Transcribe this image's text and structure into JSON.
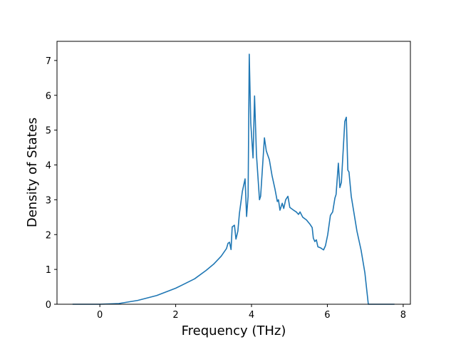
{
  "chart_data": {
    "type": "line",
    "xlabel": "Frequency (THz)",
    "ylabel": "Density of States",
    "x": [
      -0.72,
      0,
      0.5,
      1,
      1.5,
      2,
      2.5,
      2.8,
      3.0,
      3.2,
      3.34,
      3.38,
      3.42,
      3.46,
      3.49,
      3.55,
      3.59,
      3.64,
      3.68,
      3.76,
      3.83,
      3.87,
      3.91,
      3.94,
      3.98,
      4.04,
      4.08,
      4.13,
      4.21,
      4.24,
      4.34,
      4.39,
      4.47,
      4.54,
      4.62,
      4.68,
      4.71,
      4.75,
      4.81,
      4.85,
      4.9,
      4.96,
      5.01,
      5.11,
      5.18,
      5.24,
      5.28,
      5.35,
      5.45,
      5.54,
      5.6,
      5.63,
      5.67,
      5.71,
      5.75,
      5.82,
      5.9,
      5.95,
      6.01,
      6.08,
      6.14,
      6.2,
      6.23,
      6.29,
      6.33,
      6.37,
      6.46,
      6.5,
      6.54,
      6.57,
      6.63,
      6.69,
      6.78,
      6.89,
      6.99,
      7.02,
      7.08,
      7.77
    ],
    "series": [
      {
        "color": "#1f77b4",
        "values": [
          0,
          0,
          0.02,
          0.11,
          0.25,
          0.46,
          0.73,
          0.97,
          1.15,
          1.38,
          1.6,
          1.75,
          1.78,
          1.57,
          2.22,
          2.27,
          1.87,
          2.1,
          2.6,
          3.25,
          3.6,
          2.52,
          3.1,
          7.18,
          5.2,
          4.2,
          5.98,
          4.3,
          3.0,
          3.1,
          4.78,
          4.4,
          4.15,
          3.7,
          3.3,
          2.95,
          3.0,
          2.7,
          2.9,
          2.75,
          3.0,
          3.1,
          2.78,
          2.7,
          2.65,
          2.58,
          2.65,
          2.5,
          2.42,
          2.3,
          2.2,
          1.9,
          1.8,
          1.85,
          1.65,
          1.62,
          1.56,
          1.68,
          2.0,
          2.55,
          2.65,
          3.05,
          3.15,
          4.05,
          3.35,
          3.5,
          5.25,
          5.37,
          3.85,
          3.8,
          3.1,
          2.7,
          2.1,
          1.55,
          0.9,
          0.6,
          0,
          0
        ]
      }
    ],
    "xlim": [
      -1.13,
      8.19
    ],
    "ylim": [
      0,
      7.55
    ],
    "xticks": [
      0,
      2,
      4,
      6,
      8
    ],
    "yticks": [
      0,
      1,
      2,
      3,
      4,
      5,
      6,
      7
    ]
  }
}
